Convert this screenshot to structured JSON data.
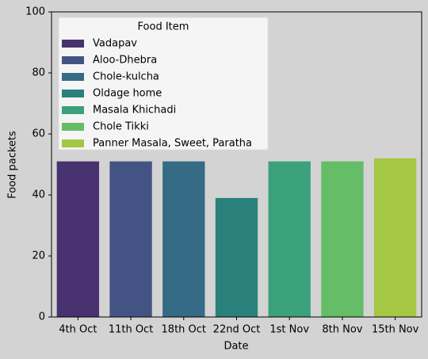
{
  "chart_data": {
    "type": "bar",
    "xlabel": "Date",
    "ylabel": "Food packets",
    "categories": [
      "4th Oct",
      "11th Oct",
      "18th Oct",
      "22nd Oct",
      "1st Nov",
      "8th Nov",
      "15th Nov"
    ],
    "values": [
      51,
      51,
      51,
      39,
      51,
      51,
      52
    ],
    "colors": [
      "#48326f",
      "#435484",
      "#366b85",
      "#2a817c",
      "#3aa17b",
      "#65bd68",
      "#a4c744"
    ],
    "legend_title": "Food Item",
    "legend_labels": [
      "Vadapav",
      "Aloo-Dhebra",
      "Chole-kulcha",
      "Oldage home",
      "Masala Khichadi",
      "Chole Tikki",
      "Panner Masala, Sweet, Paratha"
    ],
    "legend_position": "upper left",
    "ylim": [
      0,
      100
    ],
    "yticks": [
      0,
      20,
      40,
      60,
      80,
      100
    ],
    "grid": false
  }
}
